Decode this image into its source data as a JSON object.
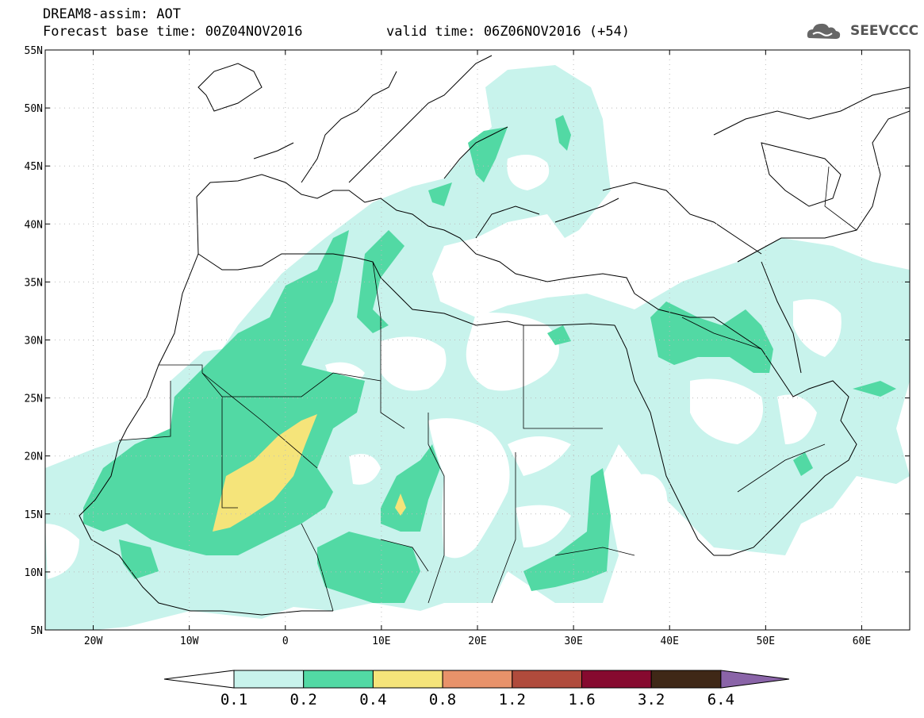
{
  "header": {
    "title": "DREAM8-assim: AOT",
    "base_time": "Forecast base time: 00Z04NOV2016",
    "valid_time": "valid time: 06Z06NOV2016 (+54)"
  },
  "logo": {
    "text": "SEEVCCC",
    "icon": "cloud-logo-icon"
  },
  "map": {
    "lon_range": [
      -25,
      65
    ],
    "lat_range": [
      5,
      55
    ],
    "lat_ticks": [
      {
        "value": 55,
        "label": "55N"
      },
      {
        "value": 50,
        "label": "50N"
      },
      {
        "value": 45,
        "label": "45N"
      },
      {
        "value": 40,
        "label": "40N"
      },
      {
        "value": 35,
        "label": "35N"
      },
      {
        "value": 30,
        "label": "30N"
      },
      {
        "value": 25,
        "label": "25N"
      },
      {
        "value": 20,
        "label": "20N"
      },
      {
        "value": 15,
        "label": "15N"
      },
      {
        "value": 10,
        "label": "10N"
      },
      {
        "value": 5,
        "label": "5N"
      }
    ],
    "lon_ticks": [
      {
        "value": -20,
        "label": "20W"
      },
      {
        "value": -10,
        "label": "10W"
      },
      {
        "value": 0,
        "label": "0"
      },
      {
        "value": 10,
        "label": "10E"
      },
      {
        "value": 20,
        "label": "20E"
      },
      {
        "value": 30,
        "label": "30E"
      },
      {
        "value": 40,
        "label": "40E"
      },
      {
        "value": 50,
        "label": "50E"
      },
      {
        "value": 60,
        "label": "60E"
      }
    ],
    "grid": "dotted"
  },
  "colorbar": {
    "labels": [
      "0.1",
      "0.2",
      "0.4",
      "0.8",
      "1.2",
      "1.6",
      "3.2",
      "6.4"
    ],
    "colors": [
      "#ffffff",
      "#c8f3ec",
      "#52d9a4",
      "#f5e47a",
      "#e8926a",
      "#b04b3c",
      "#860a2f",
      "#3f2817",
      "#8a64a8"
    ],
    "boundaries": [
      0.1,
      0.2,
      0.4,
      0.8,
      1.2,
      1.6,
      3.2,
      6.4
    ]
  }
}
